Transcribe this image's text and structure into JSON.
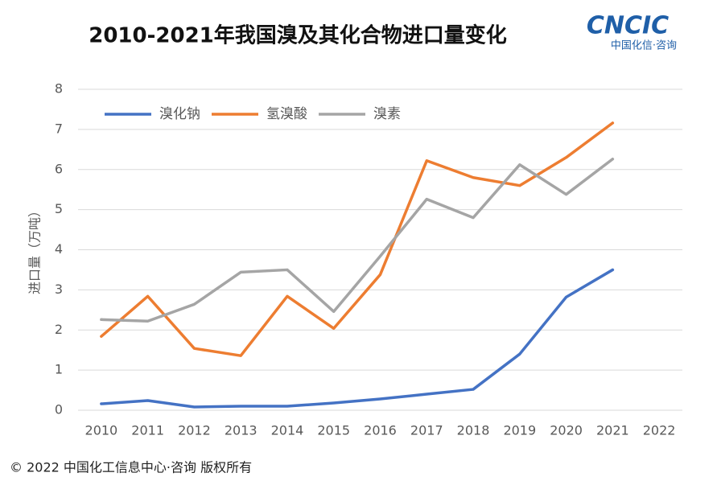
{
  "chart_data": {
    "type": "line",
    "title": "2010-2021年我国溴及其化合物进口量变化",
    "y_label": "进口量（万吨）",
    "categories": [
      "2010",
      "2011",
      "2012",
      "2013",
      "2014",
      "2015",
      "2016",
      "2017",
      "2018",
      "2019",
      "2020",
      "2021",
      "2022"
    ],
    "series": [
      {
        "name": "溴化钠",
        "color": "#4472c4",
        "values": [
          0.16,
          0.24,
          0.08,
          0.1,
          0.1,
          0.18,
          0.28,
          0.4,
          0.52,
          1.4,
          2.82,
          3.5,
          null
        ]
      },
      {
        "name": "氢溴酸",
        "color": "#ed7d31",
        "values": [
          1.84,
          2.84,
          1.54,
          1.36,
          2.84,
          2.04,
          3.38,
          6.22,
          5.8,
          5.6,
          6.3,
          7.16,
          null
        ]
      },
      {
        "name": "溴素",
        "color": "#a5a5a5",
        "values": [
          2.26,
          2.22,
          2.64,
          3.44,
          3.5,
          2.46,
          3.84,
          5.26,
          4.8,
          6.12,
          5.38,
          6.26,
          null
        ]
      }
    ],
    "ylim": [
      0,
      8
    ],
    "yticks": [
      0,
      1,
      2,
      3,
      4,
      5,
      6,
      7,
      8
    ],
    "grid": true,
    "legend": "top-left"
  },
  "logo": {
    "name": "CNCIC",
    "subtitle": "中国化信·咨询"
  },
  "footer": "© 2022 中国化工信息中心·咨询 版权所有"
}
